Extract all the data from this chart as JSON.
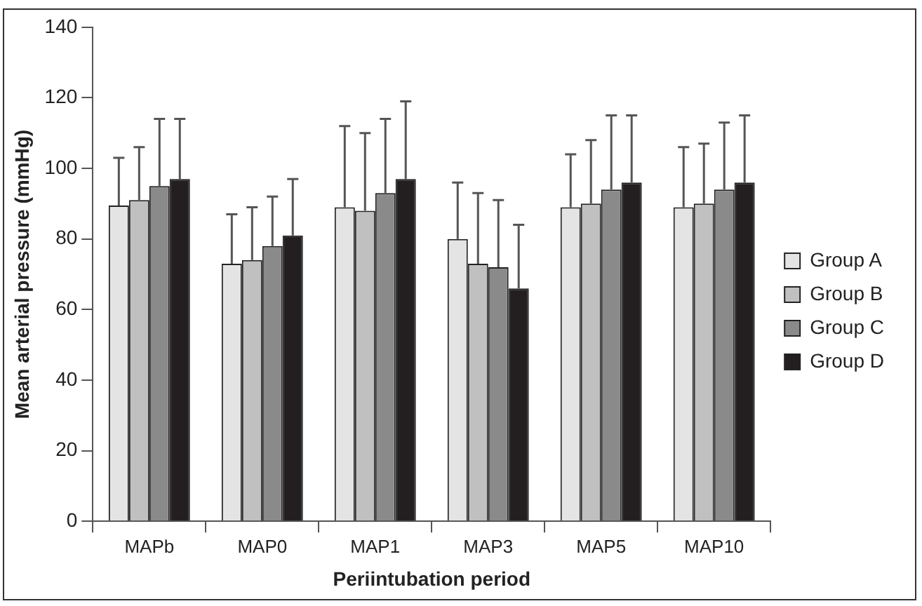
{
  "chart_data": {
    "type": "bar",
    "xlabel": "Periintubation period",
    "ylabel": "Mean arterial pressure (mmHg)",
    "categories": [
      "MAPb",
      "MAP0",
      "MAP1",
      "MAP3",
      "MAP5",
      "MAP10"
    ],
    "series": [
      {
        "name": "Group A",
        "color": "#e4e4e4",
        "values": [
          89.5,
          73,
          89,
          80,
          89,
          89
        ],
        "errors": [
          [
            89.5,
            103
          ],
          [
            73,
            87
          ],
          [
            89,
            112
          ],
          [
            80,
            96
          ],
          [
            89,
            104
          ],
          [
            89,
            106
          ]
        ]
      },
      {
        "name": "Group B",
        "color": "#c0c0c0",
        "values": [
          91,
          74,
          88,
          73,
          90,
          90
        ],
        "errors": [
          [
            91,
            106
          ],
          [
            74,
            89
          ],
          [
            88,
            110
          ],
          [
            73,
            93
          ],
          [
            90,
            108
          ],
          [
            90,
            107
          ]
        ]
      },
      {
        "name": "Group C",
        "color": "#8a8a8a",
        "values": [
          95,
          78,
          93,
          72,
          94,
          94
        ],
        "errors": [
          [
            95,
            114
          ],
          [
            78,
            92
          ],
          [
            93,
            114
          ],
          [
            72,
            91
          ],
          [
            94,
            115
          ],
          [
            94,
            113
          ]
        ]
      },
      {
        "name": "Group D",
        "color": "#231f20",
        "values": [
          97,
          81,
          97,
          66,
          96,
          96
        ],
        "errors": [
          [
            97,
            114
          ],
          [
            81,
            97
          ],
          [
            97,
            119
          ],
          [
            66,
            84
          ],
          [
            96,
            115
          ],
          [
            96,
            115
          ]
        ]
      }
    ],
    "ylim": [
      0,
      140
    ],
    "yticks": [
      0,
      20,
      40,
      60,
      80,
      100,
      120,
      140
    ],
    "grid": false,
    "legend": "right"
  }
}
